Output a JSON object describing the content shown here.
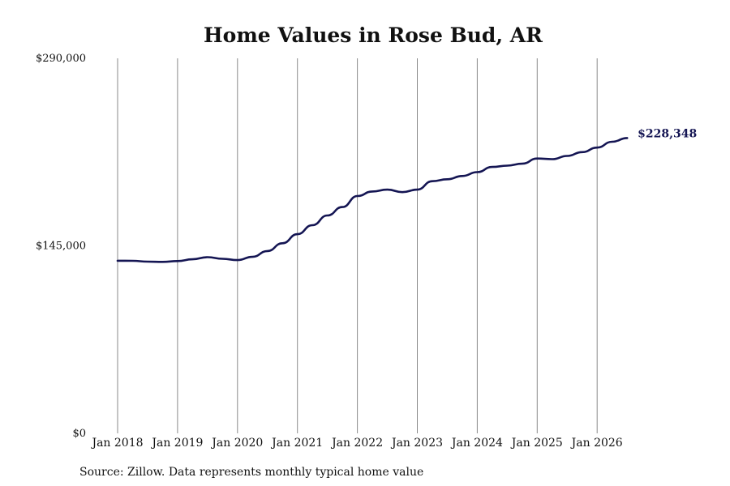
{
  "chart_data": {
    "type": "line",
    "title": "Home Values in Rose Bud, AR",
    "xlabel": "",
    "ylabel": "",
    "ylim": [
      0,
      290000
    ],
    "y_ticks": [
      {
        "value": 0,
        "label": "$0"
      },
      {
        "value": 145000,
        "label": "$145,000"
      },
      {
        "value": 290000,
        "label": "$290,000"
      }
    ],
    "x_ticks": [
      "Jan 2018",
      "Jan 2019",
      "Jan 2020",
      "Jan 2021",
      "Jan 2022",
      "Jan 2023",
      "Jan 2024",
      "Jan 2025",
      "Jan 2026"
    ],
    "grid": "vertical lines at each January",
    "line_color": "#141553",
    "end_label": "$228,348",
    "series": [
      {
        "points": [
          {
            "date": "2018-01",
            "value": 133500
          },
          {
            "date": "2018-04",
            "value": 133400
          },
          {
            "date": "2018-07",
            "value": 132800
          },
          {
            "date": "2018-10",
            "value": 132600
          },
          {
            "date": "2019-01",
            "value": 133200
          },
          {
            "date": "2019-04",
            "value": 134600
          },
          {
            "date": "2019-07",
            "value": 136200
          },
          {
            "date": "2019-10",
            "value": 135000
          },
          {
            "date": "2020-01",
            "value": 134000
          },
          {
            "date": "2020-04",
            "value": 136500
          },
          {
            "date": "2020-07",
            "value": 141000
          },
          {
            "date": "2020-10",
            "value": 147000
          },
          {
            "date": "2021-01",
            "value": 154000
          },
          {
            "date": "2021-04",
            "value": 161000
          },
          {
            "date": "2021-07",
            "value": 168500
          },
          {
            "date": "2021-10",
            "value": 175000
          },
          {
            "date": "2022-01",
            "value": 183500
          },
          {
            "date": "2022-04",
            "value": 187000
          },
          {
            "date": "2022-07",
            "value": 188500
          },
          {
            "date": "2022-10",
            "value": 186500
          },
          {
            "date": "2023-01",
            "value": 188500
          },
          {
            "date": "2023-04",
            "value": 195000
          },
          {
            "date": "2023-07",
            "value": 196500
          },
          {
            "date": "2023-10",
            "value": 199000
          },
          {
            "date": "2024-01",
            "value": 202000
          },
          {
            "date": "2024-04",
            "value": 206000
          },
          {
            "date": "2024-07",
            "value": 207000
          },
          {
            "date": "2024-10",
            "value": 208500
          },
          {
            "date": "2025-01",
            "value": 212500
          },
          {
            "date": "2025-04",
            "value": 212000
          },
          {
            "date": "2025-07",
            "value": 214500
          },
          {
            "date": "2025-10",
            "value": 217500
          },
          {
            "date": "2026-01",
            "value": 221000
          },
          {
            "date": "2026-04",
            "value": 225500
          },
          {
            "date": "2026-07",
            "value": 228348
          }
        ]
      }
    ]
  },
  "footer": {
    "source": "Source: Zillow. Data represents monthly typical home value"
  }
}
